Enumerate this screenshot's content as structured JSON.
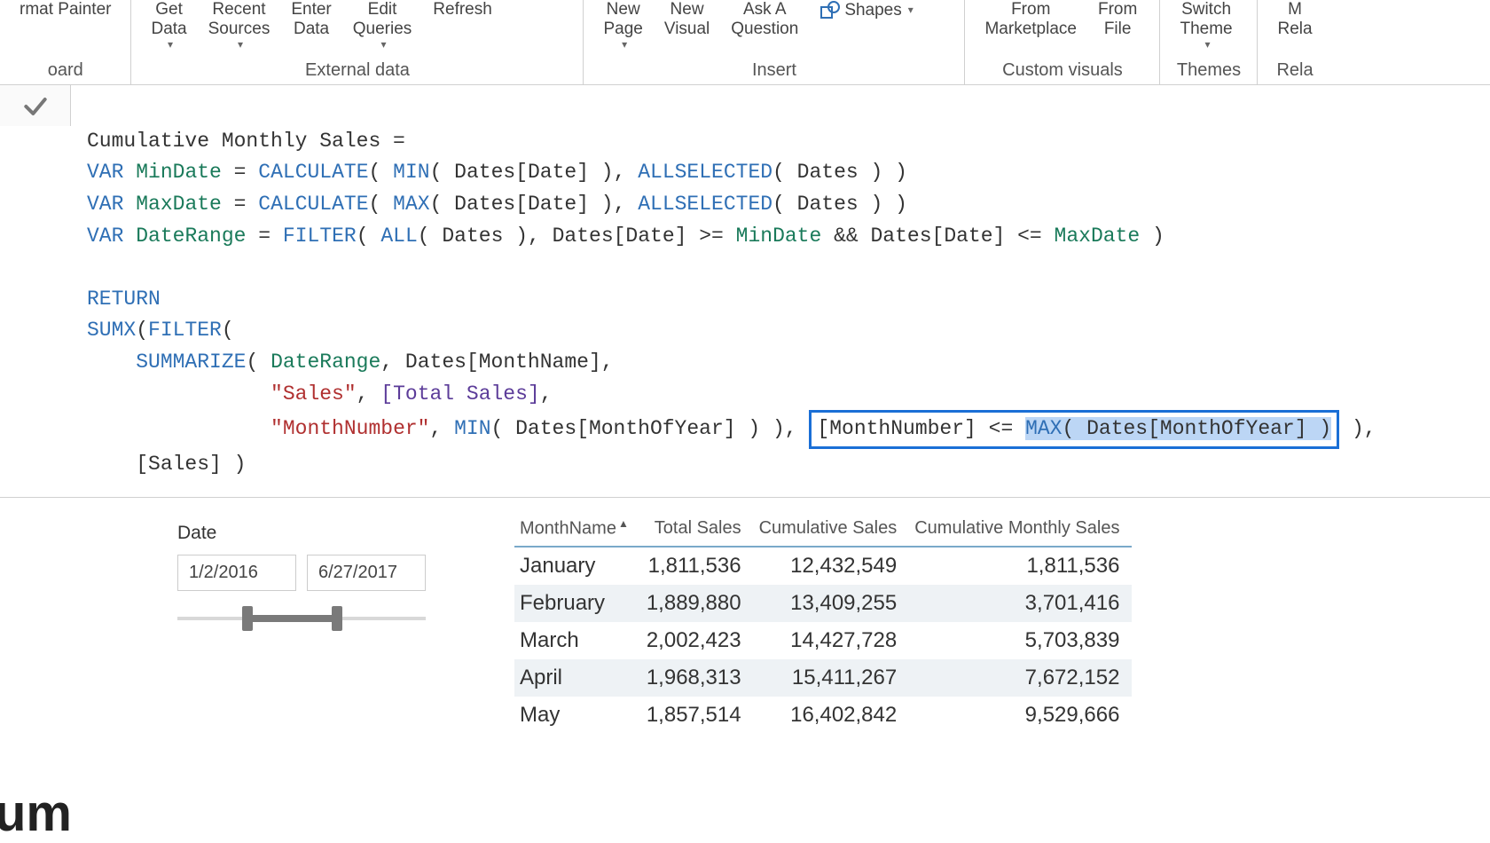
{
  "ribbon": {
    "clipboard_group": {
      "label": "oard"
    },
    "format_painter": "rmat Painter",
    "external_data": {
      "label": "External data",
      "get_data": "Get\nData",
      "recent_sources": "Recent\nSources",
      "enter_data": "Enter\nData",
      "edit_queries": "Edit\nQueries",
      "refresh": "Refresh"
    },
    "insert": {
      "label": "Insert",
      "new_page": "New\nPage",
      "new_visual": "New\nVisual",
      "ask_a_question": "Ask A\nQuestion",
      "shapes": "Shapes"
    },
    "custom_visuals": {
      "label": "Custom visuals",
      "from_marketplace": "From\nMarketplace",
      "from_file": "From\nFile"
    },
    "themes": {
      "label": "Themes",
      "switch_theme": "Switch\nTheme"
    },
    "relationships": {
      "label": "Rela",
      "manage": "M\nRela"
    }
  },
  "formula": {
    "line1_a": "Cumulative Monthly Sales =",
    "var": "VAR",
    "mindate": "MinDate",
    "maxdate": "MaxDate",
    "daterange": "DateRange",
    "calculate": "CALCULATE",
    "min": "MIN",
    "max": "MAX",
    "allselected": "ALLSELECTED",
    "filter": "FILTER",
    "all": "ALL",
    "return": "RETURN",
    "sumx": "SUMX",
    "summarize": "SUMMARIZE",
    "dates_date": "Dates[Date]",
    "dates": "Dates",
    "dates_monthname": "Dates[MonthName]",
    "sales_str": "\"Sales\"",
    "total_sales_meas": "[Total Sales]",
    "monthnumber_str": "\"MonthNumber\"",
    "dates_monthofyear": "Dates[MonthOfYear]",
    "monthnumber_col": "[MonthNumber]",
    "sales_col": "[Sales]"
  },
  "slicer": {
    "title": "Date",
    "from": "1/2/2016",
    "to": "6/27/2017",
    "handle1_pct": 26,
    "handle2_pct": 62
  },
  "table": {
    "columns": [
      "MonthName",
      "Total Sales",
      "Cumulative Sales",
      "Cumulative Monthly Sales"
    ],
    "aligns": [
      "left",
      "right",
      "right",
      "right"
    ],
    "rows": [
      [
        "January",
        "1,811,536",
        "12,432,549",
        "1,811,536"
      ],
      [
        "February",
        "1,889,880",
        "13,409,255",
        "3,701,416"
      ],
      [
        "March",
        "2,002,423",
        "14,427,728",
        "5,703,839"
      ],
      [
        "April",
        "1,968,313",
        "15,411,267",
        "7,672,152"
      ],
      [
        "May",
        "1,857,514",
        "16,402,842",
        "9,529,666"
      ]
    ]
  },
  "frag": "um"
}
